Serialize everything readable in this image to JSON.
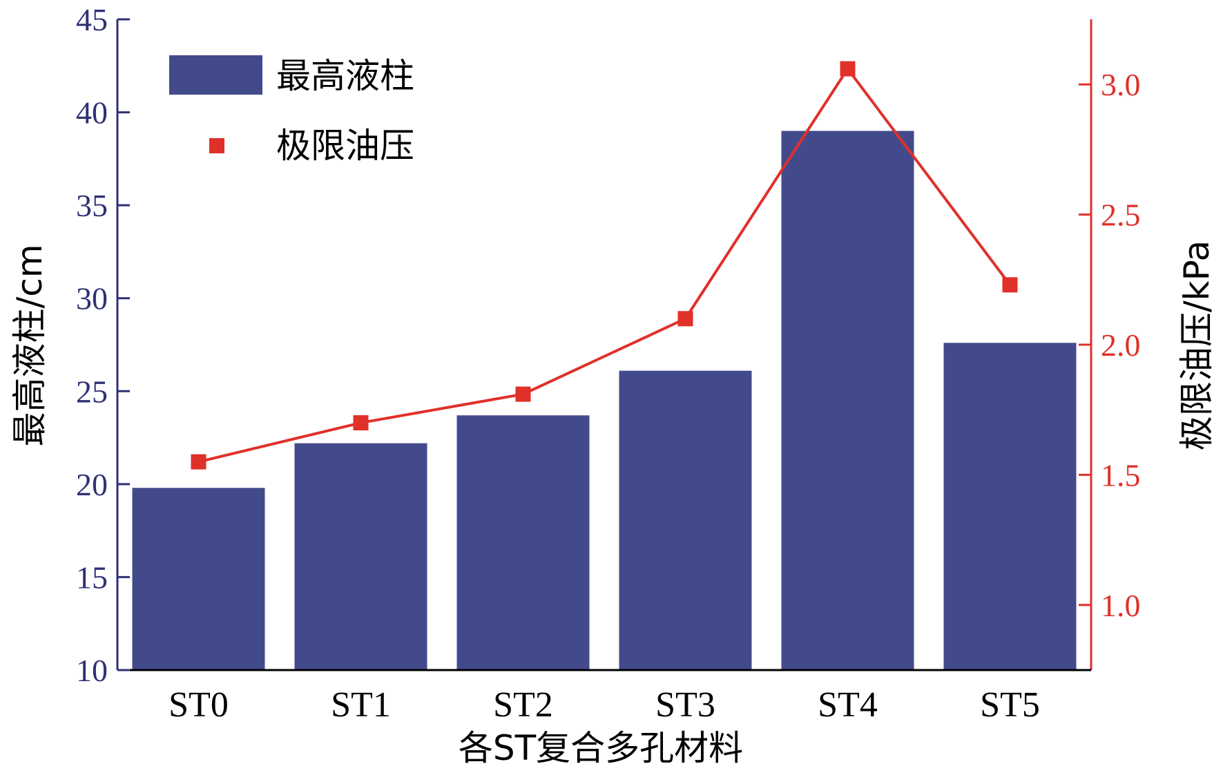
{
  "chart_data": {
    "type": "bar+line",
    "categories": [
      "ST0",
      "ST1",
      "ST2",
      "ST3",
      "ST4",
      "ST5"
    ],
    "series": [
      {
        "name": "最高液柱",
        "type": "bar",
        "axis": "left",
        "values": [
          19.8,
          22.2,
          23.7,
          26.1,
          39.0,
          27.6
        ]
      },
      {
        "name": "极限油压",
        "type": "line",
        "axis": "right",
        "values": [
          1.55,
          1.7,
          1.81,
          2.1,
          3.06,
          2.23
        ]
      }
    ],
    "xlabel": "各ST复合多孔材料",
    "ylabel_left": "最高液柱/cm",
    "ylabel_right": "极限油压/kPa",
    "ylim_left": [
      10,
      45
    ],
    "ylim_right": [
      0.75,
      3.25
    ],
    "yticks_left": [
      10,
      15,
      20,
      25,
      30,
      35,
      40,
      45
    ],
    "yticks_right": [
      "1.0",
      "1.5",
      "2.0",
      "2.5",
      "3.0"
    ],
    "legend_position": "top-left",
    "grid": false,
    "colors": {
      "bar": "#434a8c",
      "line": "#e0302a",
      "left_axis": "#2e3175",
      "right_axis": "#e0302a"
    }
  }
}
